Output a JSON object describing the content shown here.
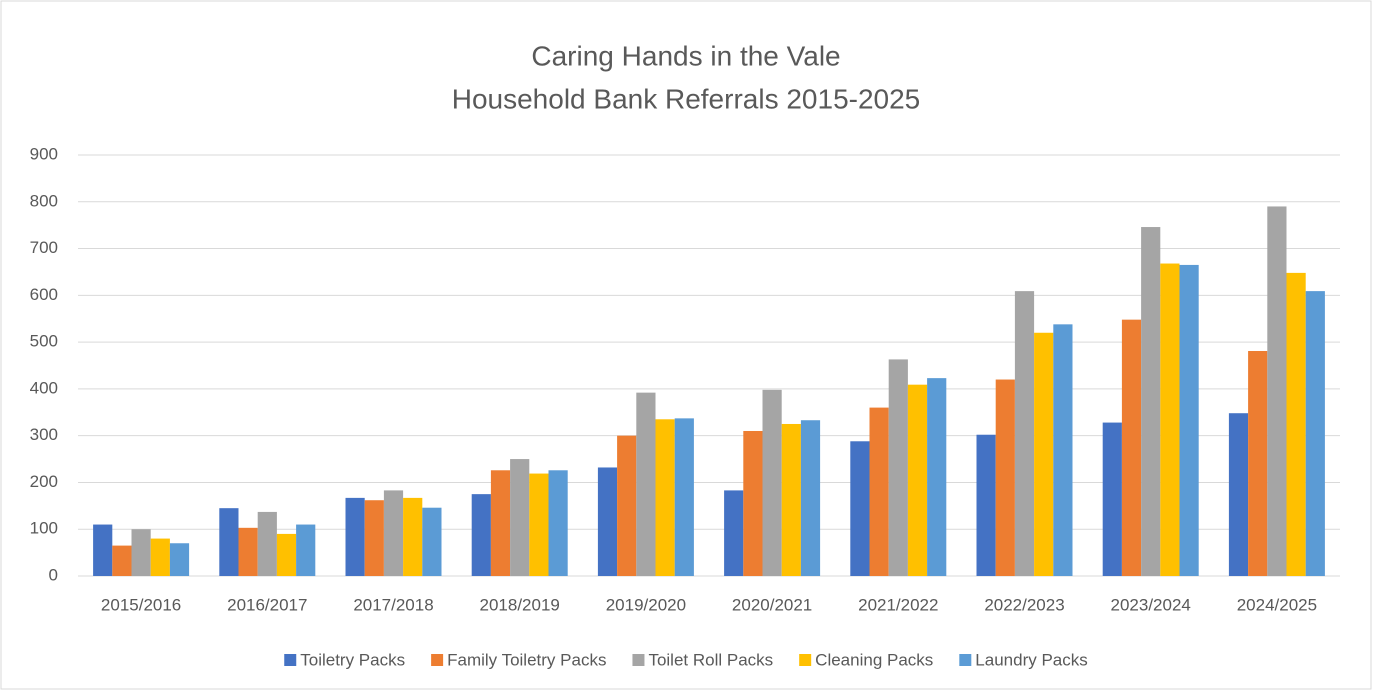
{
  "chart_data": {
    "type": "bar",
    "title": "Caring Hands in the Vale",
    "subtitle": "Household Bank Referrals 2015-2025",
    "categories": [
      "2015/2016",
      "2016/2017",
      "2017/2018",
      "2018/2019",
      "2019/2020",
      "2020/2021",
      "2021/2022",
      "2022/2023",
      "2023/2024",
      "2024/2025"
    ],
    "series": [
      {
        "name": "Toiletry Packs",
        "color": "#4472c4",
        "values": [
          110,
          145,
          167,
          175,
          232,
          183,
          288,
          302,
          328,
          348
        ]
      },
      {
        "name": "Family Toiletry Packs",
        "color": "#ed7d31",
        "values": [
          65,
          103,
          162,
          226,
          300,
          310,
          360,
          420,
          548,
          481
        ]
      },
      {
        "name": "Toilet Roll Packs",
        "color": "#a5a5a5",
        "values": [
          100,
          137,
          183,
          250,
          392,
          398,
          463,
          609,
          746,
          790
        ]
      },
      {
        "name": "Cleaning Packs",
        "color": "#ffc000",
        "values": [
          80,
          90,
          167,
          219,
          335,
          325,
          409,
          520,
          668,
          648
        ]
      },
      {
        "name": "Laundry Packs",
        "color": "#5b9bd5",
        "values": [
          70,
          110,
          146,
          226,
          337,
          333,
          423,
          538,
          665,
          609
        ]
      }
    ],
    "ylim": [
      0,
      900
    ],
    "yticks": [
      0,
      100,
      200,
      300,
      400,
      500,
      600,
      700,
      800,
      900
    ],
    "grid": true,
    "legend": "bottom"
  }
}
